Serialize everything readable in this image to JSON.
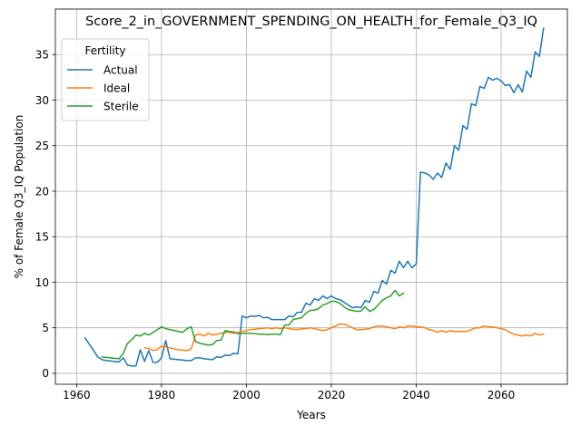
{
  "chart_data": {
    "type": "line",
    "title": "Score_2_in_GOVERNMENT_SPENDING_ON_HEALTH_for_Female_Q3_IQ",
    "xlabel": "Years",
    "ylabel": "% of Female Q3_IQ Population",
    "xlim": [
      1955,
      2075.6
    ],
    "ylim": [
      -1.2,
      40.0
    ],
    "xticks": [
      1960,
      1980,
      2000,
      2020,
      2040,
      2060
    ],
    "yticks": [
      0,
      5,
      10,
      15,
      20,
      25,
      30,
      35
    ],
    "grid": true,
    "legend": {
      "title": "Fertility",
      "placement": "upper-left"
    },
    "series": [
      {
        "name": "Actual",
        "color": "#1f77b4",
        "points": [
          [
            1962,
            3.9
          ],
          [
            1963,
            3.2
          ],
          [
            1964,
            2.5
          ],
          [
            1965,
            1.8
          ],
          [
            1966,
            1.5
          ],
          [
            1967,
            1.4
          ],
          [
            1968,
            1.35
          ],
          [
            1969,
            1.3
          ],
          [
            1970,
            1.25
          ],
          [
            1971,
            1.7
          ],
          [
            1972,
            0.9
          ],
          [
            1973,
            0.8
          ],
          [
            1974,
            0.8
          ],
          [
            1975,
            2.6
          ],
          [
            1976,
            1.3
          ],
          [
            1977,
            2.5
          ],
          [
            1978,
            1.2
          ],
          [
            1979,
            1.2
          ],
          [
            1980,
            1.7
          ],
          [
            1981,
            3.6
          ],
          [
            1982,
            1.6
          ],
          [
            1983,
            1.55
          ],
          [
            1984,
            1.5
          ],
          [
            1985,
            1.45
          ],
          [
            1986,
            1.4
          ],
          [
            1987,
            1.4
          ],
          [
            1988,
            1.7
          ],
          [
            1989,
            1.7
          ],
          [
            1990,
            1.6
          ],
          [
            1991,
            1.55
          ],
          [
            1992,
            1.5
          ],
          [
            1993,
            1.8
          ],
          [
            1994,
            1.75
          ],
          [
            1995,
            2.0
          ],
          [
            1996,
            1.95
          ],
          [
            1997,
            2.2
          ],
          [
            1998,
            2.15
          ],
          [
            1999,
            6.3
          ],
          [
            2000,
            6.1
          ],
          [
            2001,
            6.3
          ],
          [
            2002,
            6.25
          ],
          [
            2003,
            6.35
          ],
          [
            2004,
            6.1
          ],
          [
            2005,
            6.15
          ],
          [
            2006,
            5.9
          ],
          [
            2007,
            5.9
          ],
          [
            2008,
            5.9
          ],
          [
            2009,
            5.9
          ],
          [
            2010,
            6.3
          ],
          [
            2011,
            6.2
          ],
          [
            2012,
            6.7
          ],
          [
            2013,
            6.7
          ],
          [
            2014,
            7.7
          ],
          [
            2015,
            7.5
          ],
          [
            2016,
            8.2
          ],
          [
            2017,
            8.0
          ],
          [
            2018,
            8.5
          ],
          [
            2019,
            8.2
          ],
          [
            2020,
            8.5
          ],
          [
            2021,
            8.2
          ],
          [
            2022,
            8.1
          ],
          [
            2023,
            7.8
          ],
          [
            2024,
            7.5
          ],
          [
            2025,
            7.2
          ],
          [
            2026,
            7.3
          ],
          [
            2027,
            7.2
          ],
          [
            2028,
            8.0
          ],
          [
            2029,
            7.8
          ],
          [
            2030,
            9.0
          ],
          [
            2031,
            8.8
          ],
          [
            2032,
            10.2
          ],
          [
            2033,
            9.8
          ],
          [
            2034,
            11.3
          ],
          [
            2035,
            11.0
          ],
          [
            2036,
            12.3
          ],
          [
            2037,
            11.6
          ],
          [
            2038,
            12.3
          ],
          [
            2039,
            11.6
          ],
          [
            2040,
            12.0
          ],
          [
            2041,
            22.1
          ],
          [
            2042,
            22.0
          ],
          [
            2043,
            21.8
          ],
          [
            2044,
            21.3
          ],
          [
            2045,
            22.0
          ],
          [
            2046,
            21.5
          ],
          [
            2047,
            23.1
          ],
          [
            2048,
            22.4
          ],
          [
            2049,
            25.0
          ],
          [
            2050,
            24.5
          ],
          [
            2051,
            27.2
          ],
          [
            2052,
            26.8
          ],
          [
            2053,
            29.6
          ],
          [
            2054,
            29.4
          ],
          [
            2055,
            31.5
          ],
          [
            2056,
            31.3
          ],
          [
            2057,
            32.5
          ],
          [
            2058,
            32.2
          ],
          [
            2059,
            32.4
          ],
          [
            2060,
            32.1
          ],
          [
            2061,
            31.6
          ],
          [
            2062,
            31.7
          ],
          [
            2063,
            30.8
          ],
          [
            2064,
            31.7
          ],
          [
            2065,
            30.9
          ],
          [
            2066,
            33.2
          ],
          [
            2067,
            32.5
          ],
          [
            2068,
            35.3
          ],
          [
            2069,
            34.8
          ],
          [
            2070,
            37.9
          ]
        ]
      },
      {
        "name": "Ideal",
        "color": "#ff7f0e",
        "points": [
          [
            1976,
            2.8
          ],
          [
            1977,
            2.75
          ],
          [
            1978,
            2.5
          ],
          [
            1979,
            2.6
          ],
          [
            1980,
            3.0
          ],
          [
            1981,
            2.9
          ],
          [
            1982,
            2.8
          ],
          [
            1983,
            2.7
          ],
          [
            1984,
            2.6
          ],
          [
            1985,
            2.55
          ],
          [
            1986,
            2.5
          ],
          [
            1987,
            2.7
          ],
          [
            1988,
            4.2
          ],
          [
            1989,
            4.3
          ],
          [
            1990,
            4.1
          ],
          [
            1991,
            4.4
          ],
          [
            1992,
            4.2
          ],
          [
            1993,
            4.3
          ],
          [
            1994,
            4.4
          ],
          [
            1995,
            4.5
          ],
          [
            1996,
            4.5
          ],
          [
            1997,
            4.4
          ],
          [
            1998,
            4.5
          ],
          [
            1999,
            4.6
          ],
          [
            2000,
            4.7
          ],
          [
            2001,
            4.8
          ],
          [
            2002,
            4.85
          ],
          [
            2003,
            4.9
          ],
          [
            2004,
            4.95
          ],
          [
            2005,
            5.0
          ],
          [
            2006,
            4.9
          ],
          [
            2007,
            5.0
          ],
          [
            2008,
            4.9
          ],
          [
            2009,
            5.0
          ],
          [
            2010,
            4.9
          ],
          [
            2011,
            4.85
          ],
          [
            2012,
            4.8
          ],
          [
            2013,
            4.9
          ],
          [
            2014,
            4.9
          ],
          [
            2015,
            5.0
          ],
          [
            2016,
            4.9
          ],
          [
            2017,
            4.8
          ],
          [
            2018,
            4.7
          ],
          [
            2019,
            4.8
          ],
          [
            2020,
            5.0
          ],
          [
            2021,
            5.2
          ],
          [
            2022,
            5.4
          ],
          [
            2023,
            5.4
          ],
          [
            2024,
            5.2
          ],
          [
            2025,
            5.0
          ],
          [
            2026,
            4.8
          ],
          [
            2027,
            4.8
          ],
          [
            2028,
            4.85
          ],
          [
            2029,
            4.9
          ],
          [
            2030,
            5.1
          ],
          [
            2031,
            5.2
          ],
          [
            2032,
            5.2
          ],
          [
            2033,
            5.1
          ],
          [
            2034,
            5.0
          ],
          [
            2035,
            4.9
          ],
          [
            2036,
            5.1
          ],
          [
            2037,
            5.0
          ],
          [
            2038,
            5.2
          ],
          [
            2039,
            5.2
          ],
          [
            2040,
            5.1
          ],
          [
            2041,
            5.1
          ],
          [
            2042,
            5.0
          ],
          [
            2043,
            4.8
          ],
          [
            2044,
            4.7
          ],
          [
            2045,
            4.5
          ],
          [
            2046,
            4.7
          ],
          [
            2047,
            4.5
          ],
          [
            2048,
            4.7
          ],
          [
            2049,
            4.6
          ],
          [
            2050,
            4.6
          ],
          [
            2051,
            4.6
          ],
          [
            2052,
            4.6
          ],
          [
            2053,
            4.8
          ],
          [
            2054,
            5.0
          ],
          [
            2055,
            5.0
          ],
          [
            2056,
            5.2
          ],
          [
            2057,
            5.1
          ],
          [
            2058,
            5.1
          ],
          [
            2059,
            5.0
          ],
          [
            2060,
            4.9
          ],
          [
            2061,
            4.8
          ],
          [
            2062,
            4.5
          ],
          [
            2063,
            4.3
          ],
          [
            2064,
            4.2
          ],
          [
            2065,
            4.1
          ],
          [
            2066,
            4.2
          ],
          [
            2067,
            4.1
          ],
          [
            2068,
            4.4
          ],
          [
            2069,
            4.2
          ],
          [
            2070,
            4.3
          ]
        ]
      },
      {
        "name": "Sterile",
        "color": "#2ca02c",
        "points": [
          [
            1966,
            1.8
          ],
          [
            1967,
            1.75
          ],
          [
            1968,
            1.7
          ],
          [
            1969,
            1.65
          ],
          [
            1970,
            1.6
          ],
          [
            1971,
            2.2
          ],
          [
            1972,
            3.3
          ],
          [
            1973,
            3.7
          ],
          [
            1974,
            4.2
          ],
          [
            1975,
            4.1
          ],
          [
            1976,
            4.4
          ],
          [
            1977,
            4.2
          ],
          [
            1978,
            4.5
          ],
          [
            1979,
            4.8
          ],
          [
            1980,
            5.1
          ],
          [
            1981,
            4.9
          ],
          [
            1982,
            4.8
          ],
          [
            1983,
            4.7
          ],
          [
            1984,
            4.6
          ],
          [
            1985,
            4.5
          ],
          [
            1986,
            4.9
          ],
          [
            1987,
            5.1
          ],
          [
            1988,
            3.5
          ],
          [
            1989,
            3.3
          ],
          [
            1990,
            3.2
          ],
          [
            1991,
            3.1
          ],
          [
            1992,
            3.15
          ],
          [
            1993,
            3.6
          ],
          [
            1994,
            3.65
          ],
          [
            1995,
            4.7
          ],
          [
            1996,
            4.6
          ],
          [
            1997,
            4.55
          ],
          [
            1998,
            4.35
          ],
          [
            1999,
            4.4
          ],
          [
            2000,
            4.4
          ],
          [
            2001,
            4.4
          ],
          [
            2002,
            4.35
          ],
          [
            2003,
            4.3
          ],
          [
            2004,
            4.3
          ],
          [
            2005,
            4.25
          ],
          [
            2006,
            4.3
          ],
          [
            2007,
            4.3
          ],
          [
            2008,
            4.25
          ],
          [
            2009,
            5.3
          ],
          [
            2010,
            5.3
          ],
          [
            2011,
            5.9
          ],
          [
            2012,
            6.0
          ],
          [
            2013,
            6.1
          ],
          [
            2014,
            6.6
          ],
          [
            2015,
            6.9
          ],
          [
            2016,
            6.95
          ],
          [
            2017,
            7.1
          ],
          [
            2018,
            7.5
          ],
          [
            2019,
            7.65
          ],
          [
            2020,
            7.9
          ],
          [
            2021,
            7.9
          ],
          [
            2022,
            7.7
          ],
          [
            2023,
            7.3
          ],
          [
            2024,
            7.0
          ],
          [
            2025,
            6.9
          ],
          [
            2026,
            6.8
          ],
          [
            2027,
            6.85
          ],
          [
            2028,
            7.3
          ],
          [
            2029,
            6.8
          ],
          [
            2030,
            7.0
          ],
          [
            2031,
            7.5
          ],
          [
            2032,
            8.0
          ],
          [
            2033,
            8.3
          ],
          [
            2034,
            8.5
          ],
          [
            2035,
            9.1
          ],
          [
            2036,
            8.5
          ],
          [
            2037,
            8.8
          ]
        ]
      }
    ]
  }
}
